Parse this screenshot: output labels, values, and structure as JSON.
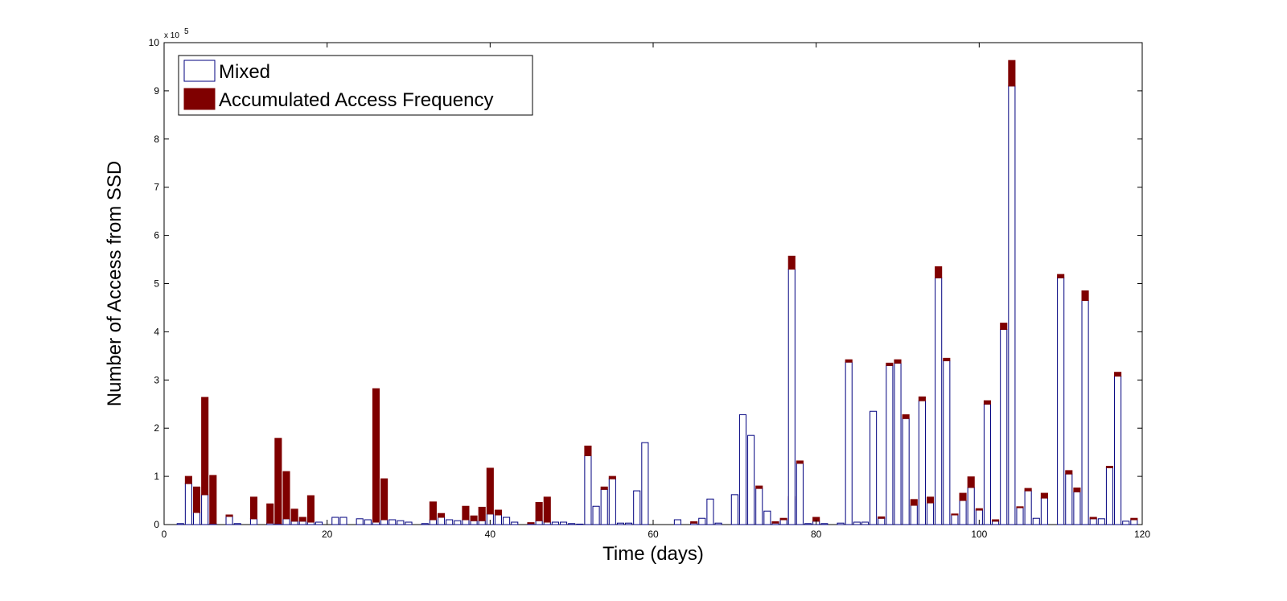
{
  "chart_data": {
    "type": "bar",
    "stacked": true,
    "title": "",
    "xlabel": "Time (days)",
    "ylabel": "Number of Access from SSD",
    "y_multiplier_label": "x 10",
    "y_multiplier_exponent": "5",
    "xlim": [
      0,
      120
    ],
    "ylim": [
      0,
      10
    ],
    "xticks": [
      0,
      20,
      40,
      60,
      80,
      100,
      120
    ],
    "yticks": [
      0,
      1,
      2,
      3,
      4,
      5,
      6,
      7,
      8,
      9,
      10
    ],
    "grid": false,
    "legend_position": "top-left",
    "series": [
      {
        "name": "Mixed",
        "style": "outline",
        "color": "#00007f",
        "values": [
          0.02,
          0.85,
          0.25,
          0.62,
          0.02,
          0.0,
          0.17,
          0.02,
          0.0,
          0.12,
          0.0,
          0.03,
          0.02,
          0.12,
          0.07,
          0.07,
          0.05,
          0.05,
          0.0,
          0.0,
          0.15,
          0.15,
          0.0,
          0.12,
          0.1,
          0.0,
          0.05,
          0.1,
          0.1,
          0.08,
          0.05,
          0.0,
          0.02,
          0.1,
          0.15,
          0.1,
          0.08,
          0.1,
          0.08,
          0.08,
          0.22,
          0.2,
          0.15,
          0.05,
          0.0,
          0.02,
          0.08,
          0.05,
          0.05,
          0.05,
          0.02,
          0.01,
          1.43,
          0.38,
          0.73,
          0.95,
          0.03,
          0.03,
          0.7,
          1.7,
          0.0,
          0.0,
          0.0,
          0.1,
          0.0,
          0.03,
          0.13,
          0.53,
          0.03,
          0.0,
          0.62,
          2.28,
          1.85,
          0.75,
          0.28,
          0.03,
          0.1,
          0.53,
          5.3,
          1.27,
          0.02,
          0.07,
          0.02,
          0.0,
          0.03,
          3.37,
          0.05,
          0.05,
          2.35,
          0.13,
          3.3,
          3.35,
          2.2,
          0.4,
          2.57,
          0.45,
          5.12,
          3.4,
          0.2,
          0.5,
          0.77,
          0.3,
          2.5,
          0.07,
          4.05,
          9.1,
          0.35,
          0.7,
          0.13,
          0.55,
          0.0,
          5.12,
          1.05,
          0.68,
          4.65,
          0.12,
          0.12,
          1.18,
          3.08,
          0.07,
          0.1
        ],
        "x": [
          2,
          3,
          4,
          5,
          6,
          7,
          8,
          9,
          10,
          11,
          12,
          13,
          14,
          15,
          16,
          17,
          18,
          19,
          20,
          21,
          21,
          22,
          23,
          24,
          25,
          26,
          26,
          27,
          28,
          29,
          30,
          31,
          32,
          33,
          34,
          35,
          36,
          37,
          38,
          39,
          40,
          41,
          42,
          43,
          44,
          45,
          46,
          47,
          48,
          49,
          50,
          51,
          52,
          53,
          54,
          55,
          56,
          57,
          58,
          59,
          60,
          61,
          62,
          63,
          64,
          65,
          66,
          67,
          68,
          69,
          70,
          71,
          72,
          73,
          74,
          75,
          76,
          77,
          77,
          78,
          79,
          80,
          81,
          82,
          83,
          84,
          85,
          86,
          87,
          88,
          89,
          90,
          91,
          92,
          93,
          94,
          95,
          96,
          97,
          98,
          99,
          100,
          101,
          102,
          103,
          104,
          105,
          106,
          107,
          108,
          109,
          110,
          111,
          112,
          113,
          114,
          115,
          116,
          117,
          118,
          119
        ]
      },
      {
        "name": "Accumulated Access Frequency",
        "style": "filled",
        "color": "#7f0000",
        "values": [
          0.0,
          0.15,
          0.53,
          2.02,
          1.0,
          0.0,
          0.03,
          0.0,
          0.0,
          0.45,
          0.0,
          0.4,
          1.77,
          0.98,
          0.25,
          0.08,
          0.55,
          0.0,
          0.0,
          0.0,
          0.0,
          0.0,
          0.0,
          0.0,
          0.0,
          0.0,
          2.77,
          0.85,
          0.0,
          0.0,
          0.0,
          0.0,
          0.0,
          0.37,
          0.08,
          0.0,
          0.0,
          0.28,
          0.1,
          0.28,
          0.95,
          0.1,
          0.0,
          0.0,
          0.0,
          0.02,
          0.38,
          0.52,
          0.0,
          0.0,
          0.0,
          0.0,
          0.2,
          0.0,
          0.05,
          0.05,
          0.0,
          0.0,
          0.0,
          0.0,
          0.0,
          0.0,
          0.0,
          0.0,
          0.0,
          0.03,
          0.0,
          0.0,
          0.0,
          0.0,
          0.0,
          0.0,
          0.0,
          0.05,
          0.0,
          0.03,
          0.03,
          0.05,
          0.27,
          0.05,
          0.0,
          0.08,
          0.0,
          0.0,
          0.0,
          0.05,
          0.0,
          0.0,
          0.0,
          0.03,
          0.05,
          0.07,
          0.08,
          0.12,
          0.08,
          0.12,
          0.23,
          0.05,
          0.02,
          0.15,
          0.22,
          0.03,
          0.07,
          0.03,
          0.13,
          0.53,
          0.02,
          0.05,
          0.0,
          0.1,
          0.0,
          0.07,
          0.07,
          0.08,
          0.2,
          0.03,
          0.0,
          0.03,
          0.08,
          0.0,
          0.03
        ]
      }
    ]
  }
}
